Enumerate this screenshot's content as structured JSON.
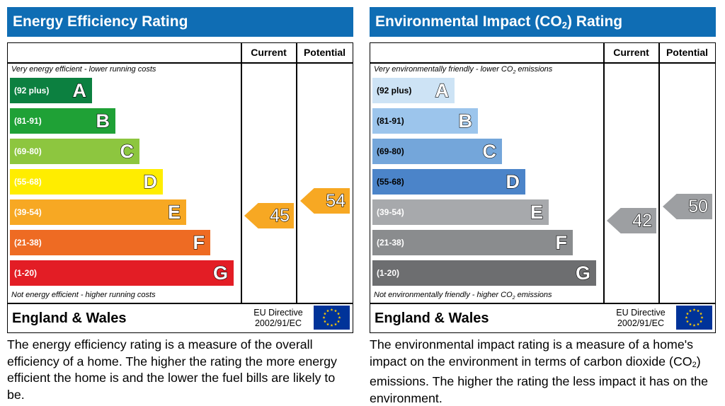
{
  "energy_panel": {
    "title": "Energy Efficiency Rating",
    "col_current": "Current",
    "col_potential": "Potential",
    "top_note": "Very energy efficient - lower running costs",
    "bottom_note": "Not energy efficient - higher running costs",
    "bands": [
      {
        "range": "(92 plus)",
        "letter": "A",
        "color": "#0c8040"
      },
      {
        "range": "(81-91)",
        "letter": "B",
        "color": "#1fa136"
      },
      {
        "range": "(69-80)",
        "letter": "C",
        "color": "#8dc63f"
      },
      {
        "range": "(55-68)",
        "letter": "D",
        "color": "#ffed00"
      },
      {
        "range": "(39-54)",
        "letter": "E",
        "color": "#f7a823"
      },
      {
        "range": "(21-38)",
        "letter": "F",
        "color": "#ee6b23"
      },
      {
        "range": "(1-20)",
        "letter": "G",
        "color": "#e31d25"
      }
    ],
    "current": {
      "value": "45",
      "band": "E",
      "color": "#f7a823"
    },
    "potential": {
      "value": "54",
      "band": "E",
      "color": "#f7a823"
    },
    "region": "England & Wales",
    "directive_line1": "EU Directive",
    "directive_line2": "2002/91/EC",
    "description": "The energy efficiency rating is a measure of the overall efficiency of a home. The higher the rating the more energy efficient the home is and the lower the fuel bills are likely to be."
  },
  "environment_panel": {
    "title_pre": "Environmental Impact (CO",
    "title_sub": "2",
    "title_post": ") Rating",
    "col_current": "Current",
    "col_potential": "Potential",
    "top_note_pre": "Very environmentally friendly - lower CO",
    "top_note_sub": "2",
    "top_note_post": " emissions",
    "bottom_note_pre": "Not environmentally friendly - higher CO",
    "bottom_note_sub": "2",
    "bottom_note_post": " emissions",
    "bands": [
      {
        "range": "(92 plus)",
        "letter": "A",
        "color": "#cde3f5"
      },
      {
        "range": "(81-91)",
        "letter": "B",
        "color": "#9cc5ec"
      },
      {
        "range": "(69-80)",
        "letter": "C",
        "color": "#74a6da"
      },
      {
        "range": "(55-68)",
        "letter": "D",
        "color": "#4b84c9"
      },
      {
        "range": "(39-54)",
        "letter": "E",
        "color": "#a7a9ac"
      },
      {
        "range": "(21-38)",
        "letter": "F",
        "color": "#8a8c8e"
      },
      {
        "range": "(1-20)",
        "letter": "G",
        "color": "#6d6e70"
      }
    ],
    "current": {
      "value": "42",
      "band": "E",
      "color": "#9d9fa2"
    },
    "potential": {
      "value": "50",
      "band": "E",
      "color": "#9d9fa2"
    },
    "region": "England & Wales",
    "directive_line1": "EU Directive",
    "directive_line2": "2002/91/EC",
    "description_pre": "The environmental impact rating is a measure of a home's impact on the environment in terms of carbon dioxide (CO",
    "description_sub": "2",
    "description_post": ") emissions. The higher the rating the less impact it has on the environment."
  }
}
